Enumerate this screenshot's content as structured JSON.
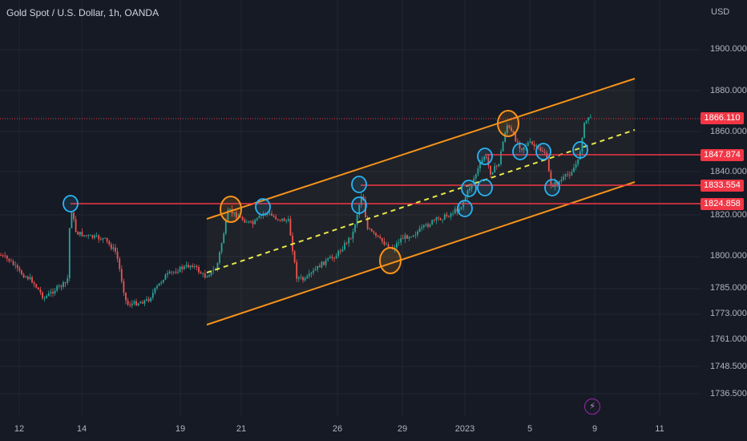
{
  "title": "Gold Spot / U.S. Dollar, 1h, OANDA",
  "currency": "USD",
  "last_price": "1866.110",
  "colors": {
    "background": "#161a25",
    "bull": "#26a69a",
    "bear": "#ef5350",
    "channel": "#f7931a",
    "midline": "#e8e84a",
    "level": "#f23645",
    "circle_blue": "#29b6f6",
    "circle_orange": "#f7931a",
    "last_price_tag": "#f23645"
  },
  "icons": {
    "alert": "lightning-icon"
  },
  "chart_data": {
    "type": "candlestick",
    "x_ticks": [
      "12",
      "14",
      "19",
      "21",
      "26",
      "29",
      "2023",
      "5",
      "9",
      "11"
    ],
    "y_ticks": [
      "1900.000",
      "1880.000",
      "1860.000",
      "1840.000",
      "1820.000",
      "1800.000",
      "1785.000",
      "1773.000",
      "1761.000",
      "1748.500",
      "1736.500"
    ],
    "horizontal_levels": [
      "1847.874",
      "1833.554",
      "1824.858"
    ],
    "last_price": 1866.11
  }
}
